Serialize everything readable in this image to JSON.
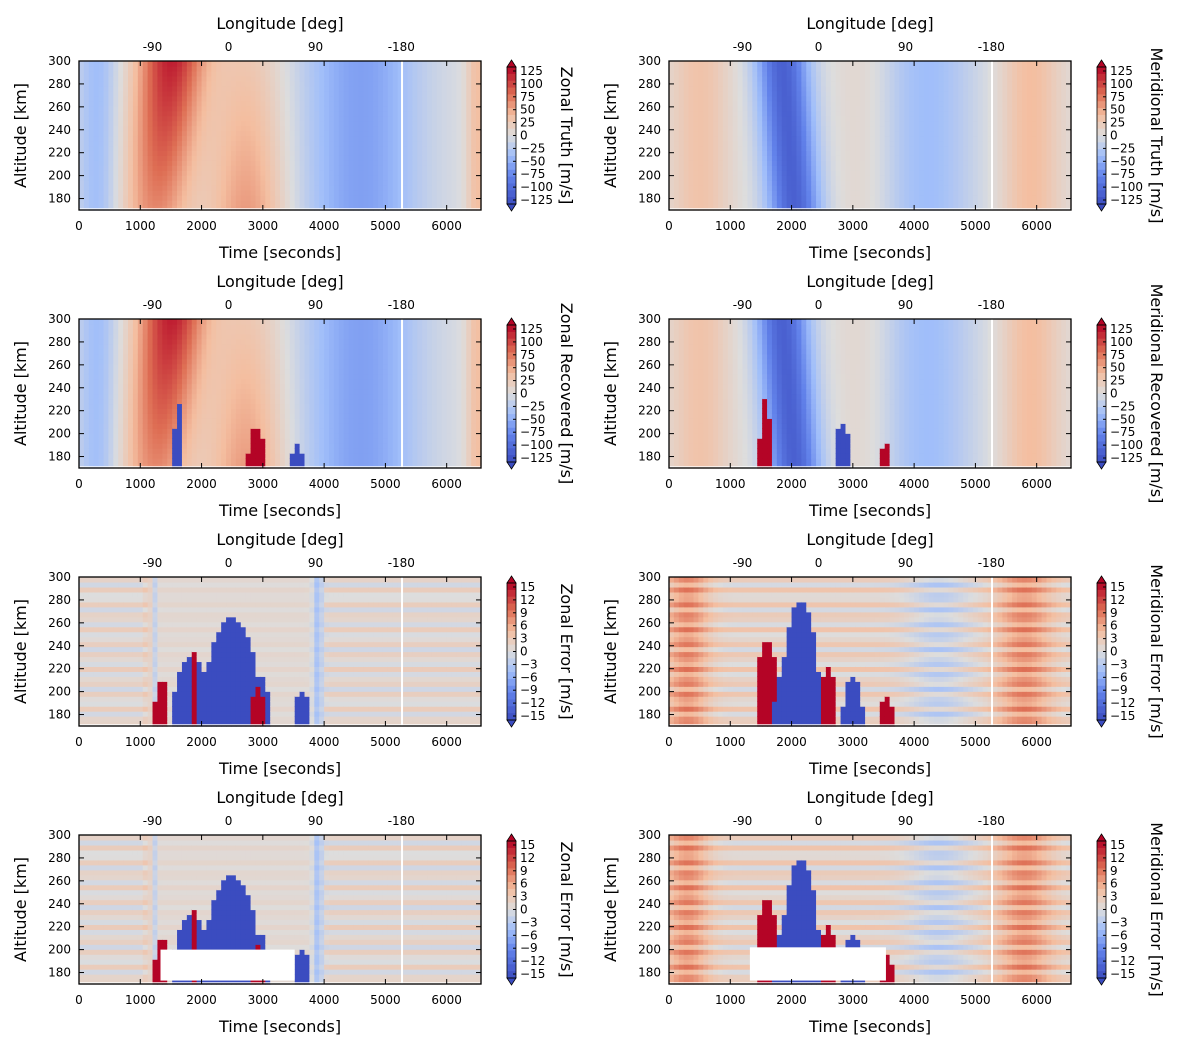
{
  "colors": {
    "strong_blue": "#3b4cc0",
    "mid_blue": "#7396f5",
    "light_blue": "#aac7fd",
    "neutral": "#dddddd",
    "light_red": "#f5c4ad",
    "mid_red": "#e67258",
    "strong_red": "#b40426",
    "gap": "#ffffff"
  },
  "chart_data": [
    {
      "type": "heatmap",
      "id": "zonal-truth",
      "top_label": "Longitude [deg]",
      "xlabel": "Time [seconds]",
      "ylabel": "Altitude [km]",
      "colorbar_label": "Zonal Truth [m/s]",
      "xlim": [
        0,
        6560
      ],
      "ylim": [
        170,
        300
      ],
      "x_ticks": [
        0,
        1000,
        2000,
        3000,
        4000,
        5000,
        6000
      ],
      "y_ticks": [
        180,
        200,
        220,
        240,
        260,
        280,
        300
      ],
      "longitude_ticks": [
        {
          "label": "-90",
          "x": 1200
        },
        {
          "label": "0",
          "x": 2440
        },
        {
          "label": "90",
          "x": 3860
        },
        {
          "label": "-180",
          "x": 5260
        }
      ],
      "colorbar_ticks": [
        "125",
        "100",
        "75",
        "50",
        "25",
        "0",
        "−25",
        "−50",
        "−75",
        "−100",
        "−125"
      ],
      "clim": [
        -125,
        125
      ]
    },
    {
      "type": "heatmap",
      "id": "meridional-truth",
      "top_label": "Longitude [deg]",
      "xlabel": "Time [seconds]",
      "ylabel": "Altitude [km]",
      "colorbar_label": "Meridional Truth [m/s]",
      "xlim": [
        0,
        6560
      ],
      "ylim": [
        170,
        300
      ],
      "x_ticks": [
        0,
        1000,
        2000,
        3000,
        4000,
        5000,
        6000
      ],
      "y_ticks": [
        180,
        200,
        220,
        240,
        260,
        280,
        300
      ],
      "longitude_ticks": [
        {
          "label": "-90",
          "x": 1200
        },
        {
          "label": "0",
          "x": 2440
        },
        {
          "label": "90",
          "x": 3860
        },
        {
          "label": "-180",
          "x": 5260
        }
      ],
      "colorbar_ticks": [
        "125",
        "100",
        "75",
        "50",
        "25",
        "0",
        "−25",
        "−50",
        "−75",
        "−100",
        "−125"
      ],
      "clim": [
        -125,
        125
      ]
    },
    {
      "type": "heatmap",
      "id": "zonal-recovered",
      "top_label": "Longitude [deg]",
      "xlabel": "Time [seconds]",
      "ylabel": "Altitude [km]",
      "colorbar_label": "Zonal Recovered [m/s]",
      "xlim": [
        0,
        6560
      ],
      "ylim": [
        170,
        300
      ],
      "x_ticks": [
        0,
        1000,
        2000,
        3000,
        4000,
        5000,
        6000
      ],
      "y_ticks": [
        180,
        200,
        220,
        240,
        260,
        280,
        300
      ],
      "longitude_ticks": [
        {
          "label": "-90",
          "x": 1200
        },
        {
          "label": "0",
          "x": 2440
        },
        {
          "label": "90",
          "x": 3860
        },
        {
          "label": "-180",
          "x": 5260
        }
      ],
      "colorbar_ticks": [
        "125",
        "100",
        "75",
        "50",
        "25",
        "0",
        "−25",
        "−50",
        "−75",
        "−100",
        "−125"
      ],
      "clim": [
        -125,
        125
      ]
    },
    {
      "type": "heatmap",
      "id": "meridional-recovered",
      "top_label": "Longitude [deg]",
      "xlabel": "Time [seconds]",
      "ylabel": "Altitude [km]",
      "colorbar_label": "Meridional Recovered [m/s]",
      "xlim": [
        0,
        6560
      ],
      "ylim": [
        170,
        300
      ],
      "x_ticks": [
        0,
        1000,
        2000,
        3000,
        4000,
        5000,
        6000
      ],
      "y_ticks": [
        180,
        200,
        220,
        240,
        260,
        280,
        300
      ],
      "longitude_ticks": [
        {
          "label": "-90",
          "x": 1200
        },
        {
          "label": "0",
          "x": 2440
        },
        {
          "label": "90",
          "x": 3860
        },
        {
          "label": "-180",
          "x": 5260
        }
      ],
      "colorbar_ticks": [
        "125",
        "100",
        "75",
        "50",
        "25",
        "0",
        "−25",
        "−50",
        "−75",
        "−100",
        "−125"
      ],
      "clim": [
        -125,
        125
      ]
    },
    {
      "type": "heatmap",
      "id": "zonal-error",
      "top_label": "Longitude [deg]",
      "xlabel": "Time [seconds]",
      "ylabel": "Altitude [km]",
      "colorbar_label": "Zonal Error [m/s]",
      "xlim": [
        0,
        6560
      ],
      "ylim": [
        170,
        300
      ],
      "x_ticks": [
        0,
        1000,
        2000,
        3000,
        4000,
        5000,
        6000
      ],
      "y_ticks": [
        180,
        200,
        220,
        240,
        260,
        280,
        300
      ],
      "longitude_ticks": [
        {
          "label": "-90",
          "x": 1200
        },
        {
          "label": "0",
          "x": 2440
        },
        {
          "label": "90",
          "x": 3860
        },
        {
          "label": "-180",
          "x": 5260
        }
      ],
      "colorbar_ticks": [
        "15",
        "12",
        "9",
        "6",
        "3",
        "0",
        "−3",
        "−6",
        "−9",
        "−12",
        "−15"
      ],
      "clim": [
        -15,
        15
      ]
    },
    {
      "type": "heatmap",
      "id": "meridional-error",
      "top_label": "Longitude [deg]",
      "xlabel": "Time [seconds]",
      "ylabel": "Altitude [km]",
      "colorbar_label": "Meridional Error [m/s]",
      "xlim": [
        0,
        6560
      ],
      "ylim": [
        170,
        300
      ],
      "x_ticks": [
        0,
        1000,
        2000,
        3000,
        4000,
        5000,
        6000
      ],
      "y_ticks": [
        180,
        200,
        220,
        240,
        260,
        280,
        300
      ],
      "longitude_ticks": [
        {
          "label": "-90",
          "x": 1200
        },
        {
          "label": "0",
          "x": 2440
        },
        {
          "label": "90",
          "x": 3860
        },
        {
          "label": "-180",
          "x": 5260
        }
      ],
      "colorbar_ticks": [
        "15",
        "12",
        "9",
        "6",
        "3",
        "0",
        "−3",
        "−6",
        "−9",
        "−12",
        "−15"
      ],
      "clim": [
        -15,
        15
      ]
    },
    {
      "type": "heatmap",
      "id": "zonal-error-masked",
      "top_label": "Longitude [deg]",
      "xlabel": "Time [seconds]",
      "ylabel": "Altitude [km]",
      "colorbar_label": "Zonal Error [m/s]",
      "xlim": [
        0,
        6560
      ],
      "ylim": [
        170,
        300
      ],
      "x_ticks": [
        0,
        1000,
        2000,
        3000,
        4000,
        5000,
        6000
      ],
      "y_ticks": [
        180,
        200,
        220,
        240,
        260,
        280,
        300
      ],
      "longitude_ticks": [
        {
          "label": "-90",
          "x": 1200
        },
        {
          "label": "0",
          "x": 2440
        },
        {
          "label": "90",
          "x": 3860
        },
        {
          "label": "-180",
          "x": 5260
        }
      ],
      "colorbar_ticks": [
        "15",
        "12",
        "9",
        "6",
        "3",
        "0",
        "−3",
        "−6",
        "−9",
        "−12",
        "−15"
      ],
      "clim": [
        -15,
        15
      ]
    },
    {
      "type": "heatmap",
      "id": "meridional-error-masked",
      "top_label": "Longitude [deg]",
      "xlabel": "Time [seconds]",
      "ylabel": "Altitude [km]",
      "colorbar_label": "Meridional Error [m/s]",
      "xlim": [
        0,
        6560
      ],
      "ylim": [
        170,
        300
      ],
      "x_ticks": [
        0,
        1000,
        2000,
        3000,
        4000,
        5000,
        6000
      ],
      "y_ticks": [
        180,
        200,
        220,
        240,
        260,
        280,
        300
      ],
      "longitude_ticks": [
        {
          "label": "-90",
          "x": 1200
        },
        {
          "label": "0",
          "x": 2440
        },
        {
          "label": "90",
          "x": 3860
        },
        {
          "label": "-180",
          "x": 5260
        }
      ],
      "colorbar_ticks": [
        "15",
        "12",
        "9",
        "6",
        "3",
        "0",
        "−3",
        "−6",
        "−9",
        "−12",
        "−15"
      ],
      "clim": [
        -15,
        15
      ]
    }
  ]
}
